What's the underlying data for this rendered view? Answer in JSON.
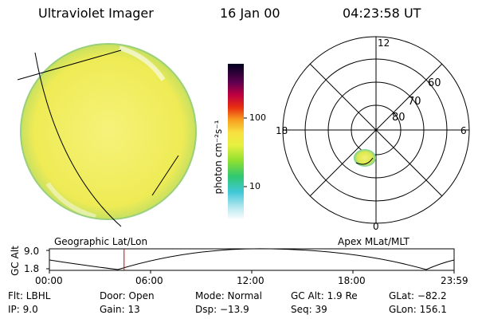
{
  "header": {
    "instrument": "Ultraviolet Imager",
    "date": "16 Jan 00",
    "time": "04:23:58 UT"
  },
  "colorbar": {
    "unit_label": "photon cm⁻²s⁻¹",
    "tick_labels": [
      "100",
      "10"
    ]
  },
  "polar_plot": {
    "mlt_labels": {
      "top": "12",
      "left": "18",
      "right": "6",
      "bottom": "0"
    },
    "lat_labels": [
      "60",
      "70",
      "80"
    ]
  },
  "timeline": {
    "left_caption": "Geographic Lat/Lon",
    "right_caption": "Apex MLat/MLT",
    "axis_title": "GC Alt",
    "y_ticks": [
      "9.0",
      "1.8"
    ],
    "x_ticks": [
      "00:00",
      "06:00",
      "12:00",
      "18:00",
      "23:59"
    ],
    "current_time_fraction": 0.1846
  },
  "status": {
    "flt": "Flt: LBHL",
    "ip": "IP:  9.0",
    "door": "Door: Open",
    "gain": "Gain: 13",
    "mode": "Mode: Normal",
    "dsp": "Dsp:  −13.9",
    "gc_alt": "GC Alt: 1.9 Re",
    "seq": "Seq: 39",
    "glat": "GLat: −82.2",
    "glon": "GLon: 156.1"
  },
  "colors": {
    "disk": "#f2ef5a",
    "marker": "#cc0000"
  }
}
